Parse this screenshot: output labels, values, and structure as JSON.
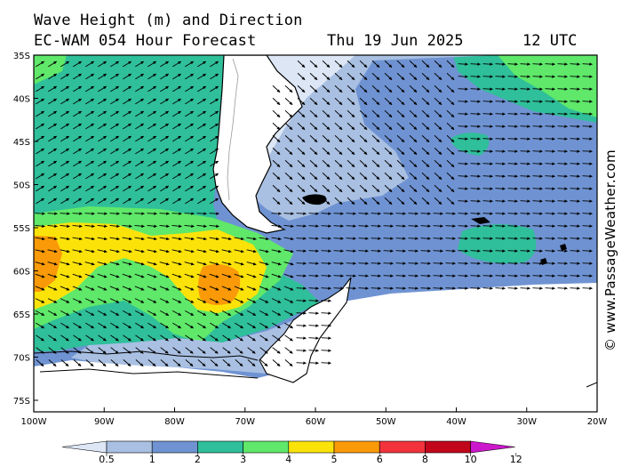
{
  "header": {
    "title": "Wave Height (m) and Direction",
    "model": "EC-WAM 054 Hour Forecast",
    "date": "Thu 19 Jun 2025",
    "time": "12 UTC"
  },
  "watermark": "© www.PassageWeather.com",
  "axes": {
    "lat_labels": [
      "35S",
      "40S",
      "45S",
      "50S",
      "55S",
      "60S",
      "65S",
      "70S",
      "75S"
    ],
    "lon_labels": [
      "100W",
      "90W",
      "80W",
      "70W",
      "60W",
      "50W",
      "40W",
      "30W",
      "20W"
    ]
  },
  "legend": {
    "labels": [
      "0.5",
      "1",
      "2",
      "3",
      "4",
      "5",
      "6",
      "8",
      "10",
      "12"
    ],
    "colors": [
      "#dce6f5",
      "#a9c0e2",
      "#6f93d2",
      "#2fbf9a",
      "#5fe86a",
      "#fbe30a",
      "#fb9a08",
      "#f2333c",
      "#c1061a",
      "#cc18cc"
    ]
  },
  "map_colors": {
    "land": "#ffffff",
    "sea_ice": "#ffffff",
    "band_0_5_1": "#dce6f5",
    "band_1_2": "#a9c0e2",
    "band_2_3": "#6f93d2",
    "band_3_4": "#2fbf9a",
    "band_4_5": "#5fe86a",
    "band_5_6": "#fbe30a",
    "band_6_8": "#fb9a08"
  }
}
